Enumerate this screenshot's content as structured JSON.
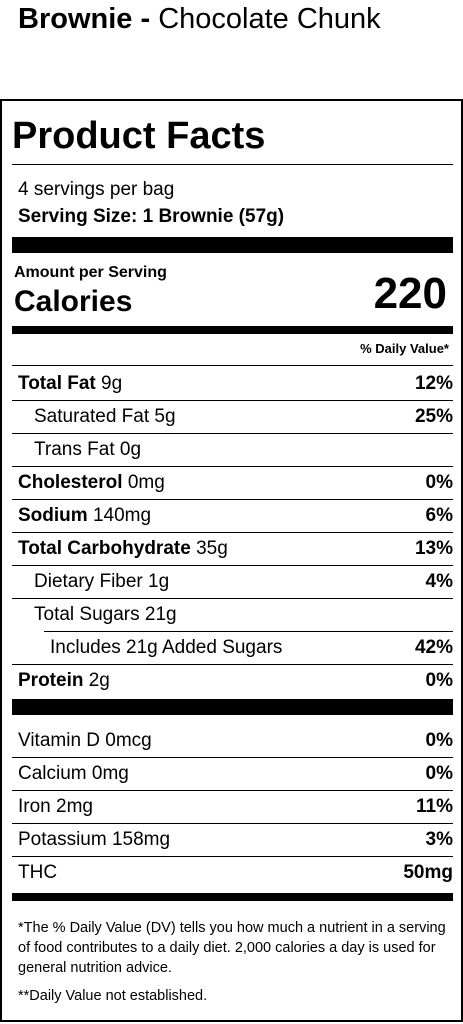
{
  "header": {
    "product": "Brownie -",
    "flavor": "Chocolate Chunk"
  },
  "label": {
    "title": "Product Facts",
    "servings": "4 servings per bag",
    "serving_size": "Serving Size: 1 Brownie (57g)",
    "amount_per_serving": "Amount per Serving",
    "calories_label": "Calories",
    "calories_value": "220",
    "dv_header": "% Daily Value*",
    "nutrients": [
      {
        "name": "Total Fat",
        "amount": "9g",
        "dv": "12%"
      },
      {
        "name": "Saturated Fat 5g",
        "dv": "25%"
      },
      {
        "name": "Trans Fat 0g",
        "dv": ""
      },
      {
        "name": "Cholesterol",
        "amount": "0mg",
        "dv": "0%"
      },
      {
        "name": "Sodium",
        "amount": "140mg",
        "dv": "6%"
      },
      {
        "name": "Total Carbohydrate",
        "amount": "35g",
        "dv": "13%"
      },
      {
        "name": "Dietary Fiber 1g",
        "dv": "4%"
      },
      {
        "name": "Total Sugars 21g",
        "dv": ""
      },
      {
        "name": "Includes 21g Added Sugars",
        "dv": "42%"
      },
      {
        "name": "Protein",
        "amount": "2g",
        "dv": "0%"
      }
    ],
    "vitamins": [
      {
        "name": "Vitamin D 0mcg",
        "dv": "0%"
      },
      {
        "name": "Calcium 0mg",
        "dv": "0%"
      },
      {
        "name": "Iron 2mg",
        "dv": "11%"
      },
      {
        "name": "Potassium 158mg",
        "dv": "3%"
      },
      {
        "name": "THC",
        "dv": "50mg"
      }
    ],
    "footnote_1": "*The % Daily Value (DV) tells you how much a nutrient in a serving of food contributes to a daily diet. 2,000 calories a day is used for general nutrition advice.",
    "footnote_2": "**Daily Value not established."
  }
}
